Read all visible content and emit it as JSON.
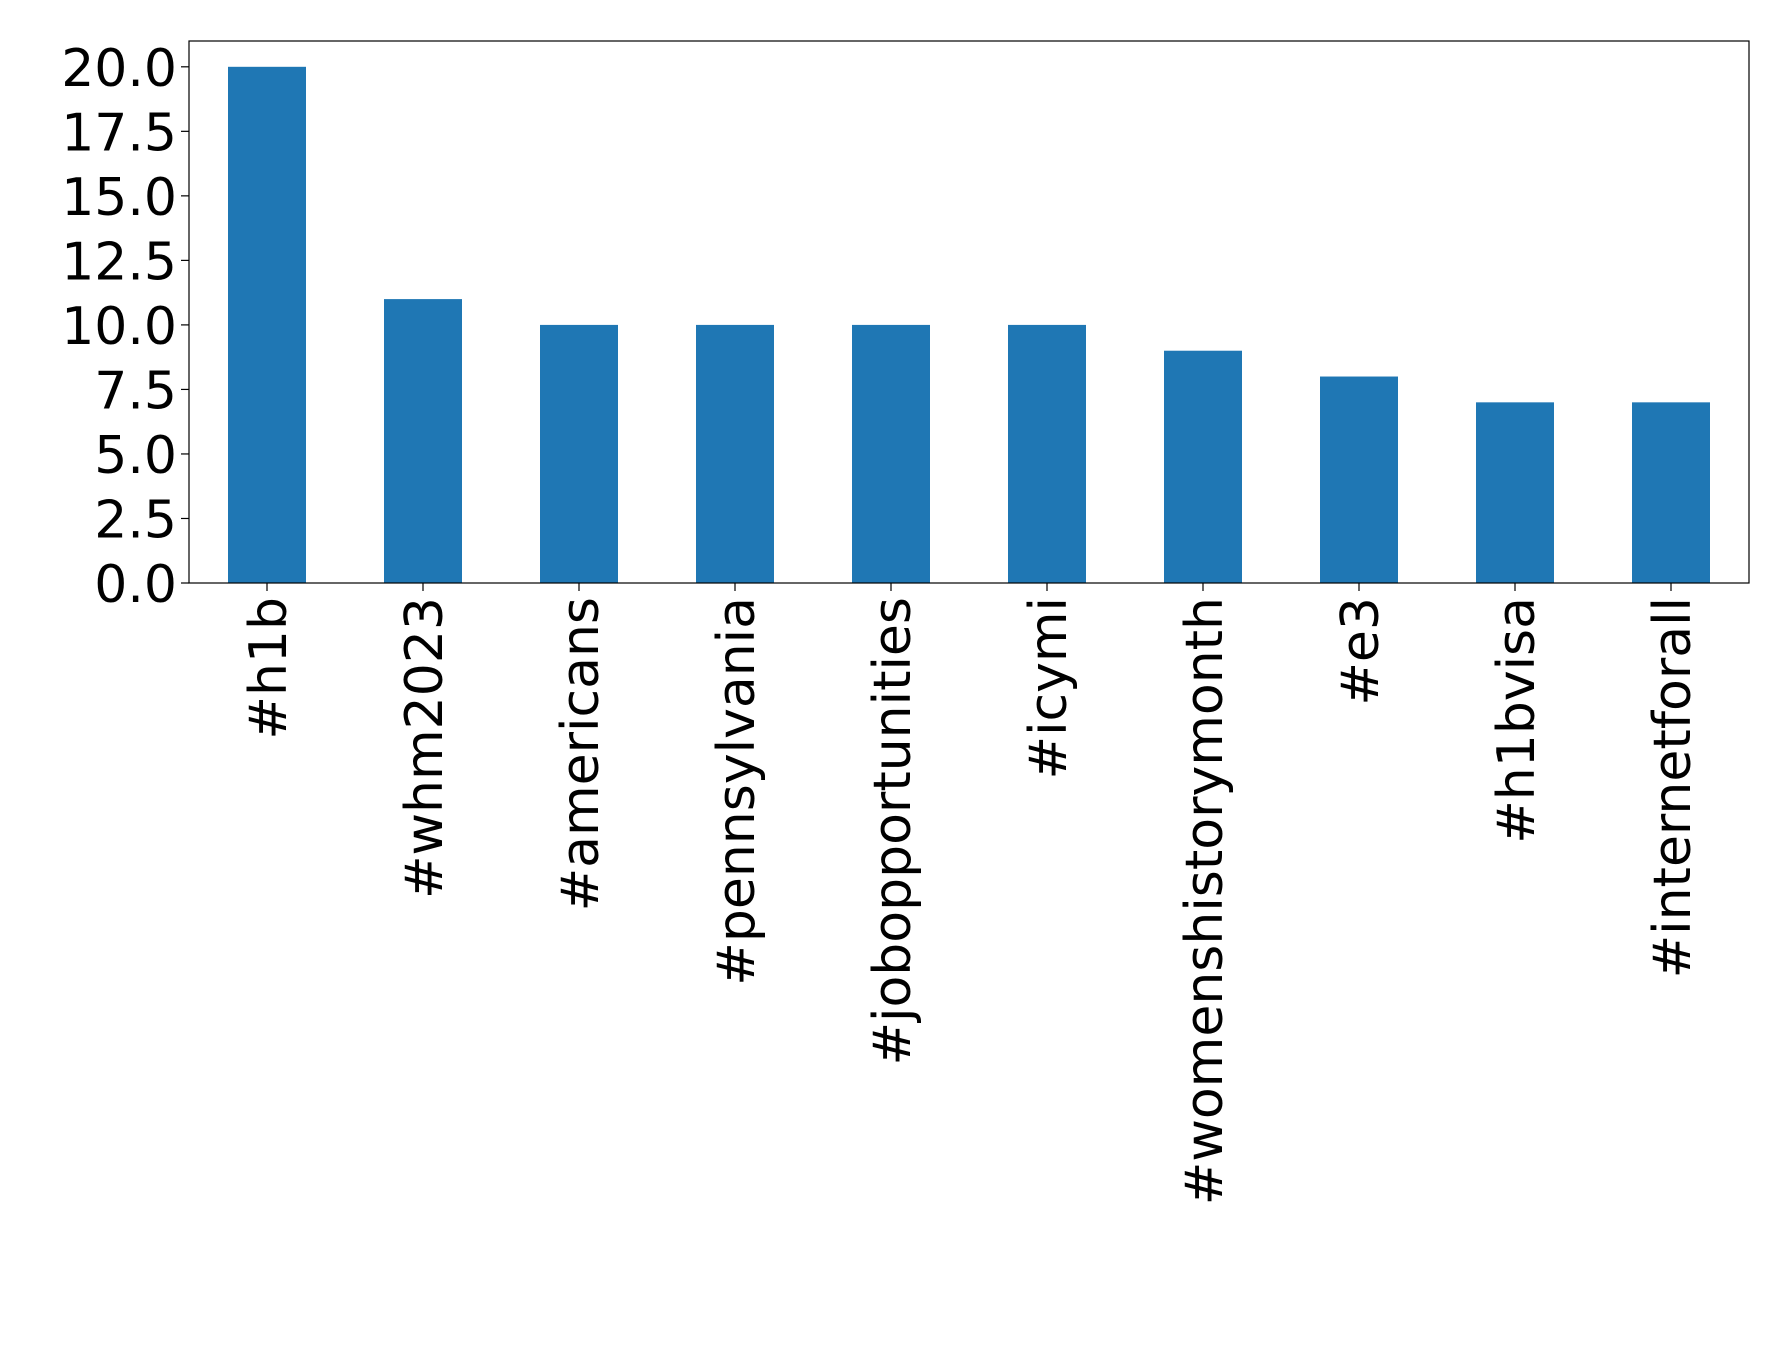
{
  "chart_data": {
    "type": "bar",
    "categories": [
      "#h1b",
      "#whm2023",
      "#americans",
      "#pennsylvania",
      "#jobopportunities",
      "#icymi",
      "#womenshistorymonth",
      "#e3",
      "#h1bvisa",
      "#internetforall"
    ],
    "values": [
      20,
      11,
      10,
      10,
      10,
      10,
      9,
      8,
      7,
      7
    ],
    "color": "#1f77b4",
    "ylim": [
      0,
      21
    ],
    "yticks": [
      {
        "value": 0,
        "label": "0.0"
      },
      {
        "value": 2.5,
        "label": "2.5"
      },
      {
        "value": 5,
        "label": "5.0"
      },
      {
        "value": 7.5,
        "label": "7.5"
      },
      {
        "value": 10,
        "label": "10.0"
      },
      {
        "value": 12.5,
        "label": "12.5"
      },
      {
        "value": 15,
        "label": "15.0"
      },
      {
        "value": 17.5,
        "label": "17.5"
      },
      {
        "value": 20,
        "label": "20.0"
      }
    ],
    "grid": false
  }
}
